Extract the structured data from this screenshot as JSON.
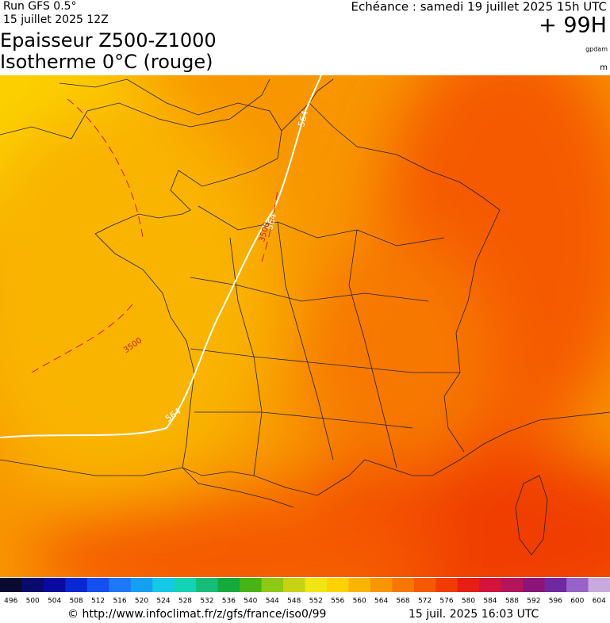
{
  "header": {
    "run": "Run GFS 0.5°",
    "run_date": "15 juillet 2025 12Z",
    "valid": "Echéance : samedi 19 juillet 2025 15h UTC",
    "lead": "+ 99H",
    "title": "Epaisseur Z500-Z1000",
    "subtitle": "Isotherme 0°C (rouge)",
    "unit_top": "gpdam",
    "unit_bottom": "m"
  },
  "map": {
    "contour_labels": [
      "564",
      "564",
      "564",
      "3500",
      "3500"
    ]
  },
  "colorbar": {
    "labels": [
      496,
      500,
      504,
      508,
      512,
      516,
      520,
      524,
      528,
      532,
      536,
      540,
      544,
      548,
      552,
      556,
      560,
      564,
      568,
      572,
      576,
      580,
      584,
      588,
      592,
      596,
      600,
      604
    ],
    "colors": [
      "#0a0a30",
      "#0a0a6e",
      "#0a0aa0",
      "#0a28d2",
      "#1450f0",
      "#1e78f5",
      "#14a0f0",
      "#14c8e6",
      "#14d2b4",
      "#14be78",
      "#14aa3c",
      "#46b414",
      "#8cc814",
      "#c8d214",
      "#f0e614",
      "#fcd200",
      "#f9b400",
      "#f89600",
      "#f77800",
      "#f55a00",
      "#f03c00",
      "#e61e14",
      "#d2143c",
      "#b4145a",
      "#8c1478",
      "#6e28a0",
      "#9664c8",
      "#c8aadc"
    ]
  },
  "footer": {
    "source": "© http://www.infoclimat.fr/z/gfs/france/iso0/99",
    "generated": "15 juil. 2025 16:03 UTC"
  }
}
